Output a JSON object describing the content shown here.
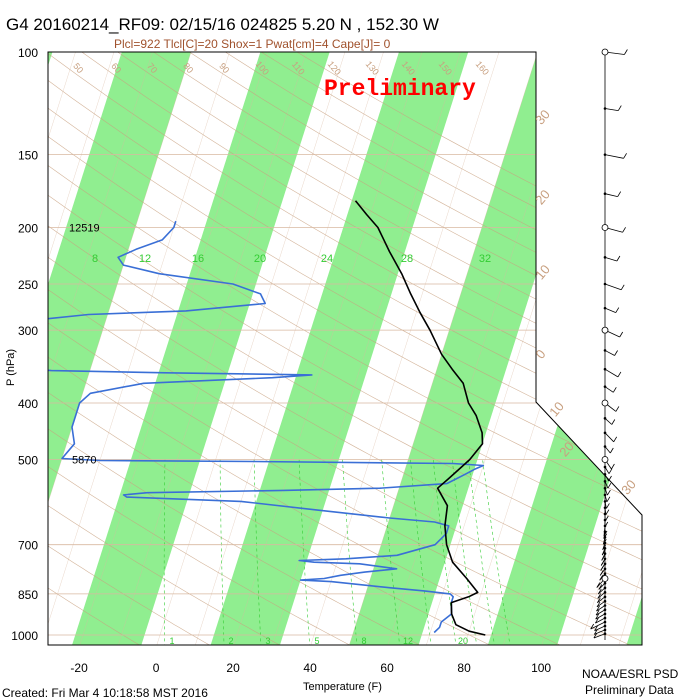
{
  "title": "G4 20160214_RF09: 02/15/16 024825    5.20 N , 152.30 W",
  "subtitle": "Plcl=922 Tlcl[C]=20 Shox=1 Pwat[cm]=4 Cape[J]= 0",
  "watermark": "Preliminary",
  "ylabel": "P (hPa)",
  "footer_left": "Created: Fri Mar  4 10:18:58 MST 2016",
  "footer_right_1": "NOAA/ESRL PSD",
  "footer_right_2": "Preliminary Data",
  "colors": {
    "band": "#90ee90",
    "temperature": "#000000",
    "dewpoint": "#3a6fd6",
    "adiabat": "#c8a080",
    "mixing_ratio": "#33cc33",
    "grid": "#d8b8a0",
    "watermark": "#ff0000",
    "subtitle": "#a0522d"
  },
  "chart_data": {
    "type": "line",
    "diagram": "skew-T log-P",
    "xlabel": "Temperature (F)",
    "ylabel": "P (hPa)",
    "xlim": [
      -28,
      128
    ],
    "ylim": [
      1050,
      100
    ],
    "x_scale": "linear (skewed)",
    "y_scale": "log",
    "x_ticks": [
      -20,
      0,
      20,
      40,
      60,
      80,
      100
    ],
    "y_ticks": [
      100,
      150,
      200,
      250,
      300,
      400,
      500,
      700,
      850,
      1000
    ],
    "height_labels": [
      {
        "p": 200,
        "text": "12519"
      },
      {
        "p": 500,
        "text": "5870"
      }
    ],
    "mixing_ratio_labels_upper": [
      "8",
      "12",
      "16",
      "20",
      "24",
      "28",
      "32"
    ],
    "mixing_ratio_labels_lower": [
      "1",
      "2",
      "3",
      "5",
      "8",
      "12",
      "20"
    ],
    "top_isotherm_labels": [
      "50",
      "60",
      "70",
      "80",
      "90",
      "100",
      "110",
      "120",
      "130",
      "140",
      "150",
      "160"
    ],
    "right_labels": [
      "30",
      "20",
      "10",
      "0",
      "10",
      "20",
      "30"
    ],
    "series": [
      {
        "name": "Temperature",
        "points": [
          [
            1000,
            84.5
          ],
          [
            985,
            80
          ],
          [
            960,
            76
          ],
          [
            920,
            74
          ],
          [
            880,
            73
          ],
          [
            860,
            77
          ],
          [
            845,
            79
          ],
          [
            800,
            75
          ],
          [
            750,
            70
          ],
          [
            700,
            67
          ],
          [
            650,
            65
          ],
          [
            600,
            64
          ],
          [
            560,
            60
          ],
          [
            540,
            62
          ],
          [
            520,
            64
          ],
          [
            500,
            66
          ],
          [
            470,
            68
          ],
          [
            450,
            67
          ],
          [
            420,
            64
          ],
          [
            400,
            61
          ],
          [
            370,
            58
          ],
          [
            350,
            54
          ],
          [
            330,
            50
          ],
          [
            300,
            45
          ],
          [
            280,
            41
          ],
          [
            260,
            37
          ],
          [
            240,
            33
          ],
          [
            220,
            28
          ],
          [
            200,
            23
          ],
          [
            190,
            19
          ],
          [
            180,
            15
          ]
        ]
      },
      {
        "name": "Dewpoint",
        "points": [
          [
            990,
            71
          ],
          [
            970,
            72
          ],
          [
            950,
            72
          ],
          [
            920,
            74
          ],
          [
            880,
            73
          ],
          [
            860,
            73
          ],
          [
            850,
            72
          ],
          [
            840,
            65
          ],
          [
            830,
            56
          ],
          [
            810,
            40
          ],
          [
            805,
            32
          ],
          [
            800,
            38
          ],
          [
            790,
            42
          ],
          [
            780,
            48
          ],
          [
            770,
            56
          ],
          [
            755,
            46
          ],
          [
            750,
            34
          ],
          [
            745,
            30
          ],
          [
            740,
            42
          ],
          [
            730,
            55
          ],
          [
            700,
            64
          ],
          [
            670,
            66
          ],
          [
            650,
            66
          ],
          [
            640,
            62
          ],
          [
            630,
            50
          ],
          [
            610,
            30
          ],
          [
            590,
            10
          ],
          [
            580,
            -20
          ],
          [
            575,
            -21
          ],
          [
            570,
            -15
          ],
          [
            565,
            20
          ],
          [
            560,
            45
          ],
          [
            550,
            62
          ],
          [
            540,
            64
          ],
          [
            530,
            66
          ],
          [
            520,
            68
          ],
          [
            512,
            70
          ],
          [
            508,
            62
          ],
          [
            504,
            10
          ],
          [
            502,
            -30
          ],
          [
            498,
            -40
          ],
          [
            470,
            -38
          ],
          [
            440,
            -40
          ],
          [
            400,
            -40
          ],
          [
            385,
            -38
          ],
          [
            370,
            -25
          ],
          [
            362,
            8
          ],
          [
            358,
            18
          ],
          [
            355,
            -20
          ],
          [
            352,
            -50
          ],
          [
            348,
            -58
          ],
          [
            330,
            -54
          ],
          [
            300,
            -55
          ],
          [
            288,
            -58
          ],
          [
            282,
            -45
          ],
          [
            278,
            -20
          ],
          [
            270,
            0
          ],
          [
            260,
            -2
          ],
          [
            250,
            -10
          ],
          [
            240,
            -30
          ],
          [
            232,
            -40
          ],
          [
            225,
            -42
          ],
          [
            218,
            -38
          ],
          [
            210,
            -32
          ],
          [
            200,
            -30
          ],
          [
            195,
            -30
          ]
        ]
      }
    ]
  }
}
